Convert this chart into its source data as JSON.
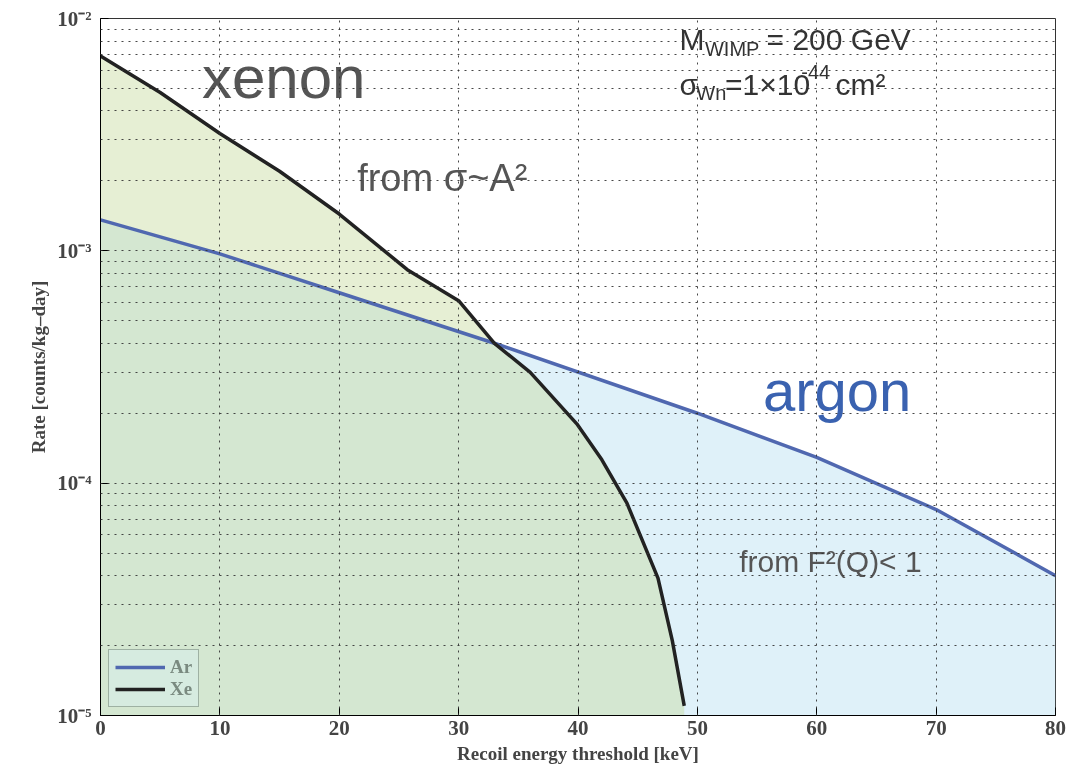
{
  "chart_data": {
    "type": "area",
    "xlabel": "Recoil energy threshold [keV]",
    "ylabel": "Rate [counts/kg–day]",
    "log": "y",
    "xlim": [
      0,
      80
    ],
    "ylim": [
      1e-05,
      0.01
    ],
    "xticks": [
      0,
      10,
      20,
      30,
      40,
      50,
      60,
      70,
      80
    ],
    "yticks": [
      {
        "value": 1e-05,
        "label": "10⁻⁵"
      },
      {
        "value": 0.0001,
        "label": "10⁻⁴"
      },
      {
        "value": 0.001,
        "label": "10⁻³"
      },
      {
        "value": 0.01,
        "label": "10⁻²"
      }
    ],
    "grid": true,
    "legend": "bottom left",
    "line_style": "solid",
    "annotations": [
      "xenon",
      "from σ~A²",
      "argon",
      "from F²(Q)< 1",
      "M$_{WIMP}$ = 200 GeV",
      "σ$_{Wn}$=1×10$^{-44}$ cm²"
    ],
    "series": [
      {
        "name": "Ar",
        "color": "#5068b0",
        "x": [
          0,
          10,
          20,
          33,
          50,
          60,
          70,
          80
        ],
        "values": [
          0.00136,
          0.00097,
          0.00066,
          0.0004,
          0.0002,
          0.000129,
          7.7e-05,
          4e-05
        ]
      },
      {
        "name": "Xe",
        "color": "#222222",
        "x": [
          0,
          5,
          10,
          15,
          20,
          25.7,
          30,
          33,
          36,
          39.9,
          42,
          44.1,
          46.7,
          47.9,
          48.9
        ],
        "values": [
          0.0069,
          0.0048,
          0.0032,
          0.0022,
          0.00144,
          0.00083,
          0.00061,
          0.0004,
          0.0003,
          0.00018,
          0.000126,
          8.2e-05,
          3.9e-05,
          2.1e-05,
          1.1e-05
        ]
      }
    ]
  }
}
